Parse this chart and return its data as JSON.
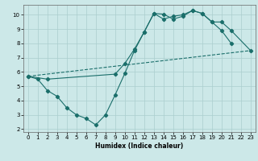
{
  "xlabel": "Humidex (Indice chaleur)",
  "xlim": [
    -0.5,
    23.5
  ],
  "ylim": [
    1.8,
    10.7
  ],
  "yticks": [
    2,
    3,
    4,
    5,
    6,
    7,
    8,
    9,
    10
  ],
  "xticks": [
    0,
    1,
    2,
    3,
    4,
    5,
    6,
    7,
    8,
    9,
    10,
    11,
    12,
    13,
    14,
    15,
    16,
    17,
    18,
    19,
    20,
    21,
    22,
    23
  ],
  "bg_color": "#cce8e8",
  "line_color": "#1a6e6a",
  "grid_color": "#aacece",
  "curve1_x": [
    0,
    1,
    2,
    3,
    4,
    5,
    6,
    7,
    8,
    9,
    10,
    11,
    12,
    13,
    14,
    15,
    16,
    17,
    18,
    19,
    20,
    21
  ],
  "curve1_y": [
    5.7,
    5.5,
    4.7,
    4.3,
    3.5,
    3.0,
    2.75,
    2.3,
    3.0,
    4.4,
    5.9,
    7.5,
    8.8,
    10.1,
    9.7,
    9.9,
    10.0,
    10.3,
    10.1,
    9.5,
    8.9,
    8.0
  ],
  "curve2_x": [
    0,
    2,
    9,
    10,
    11,
    12,
    13,
    14,
    15,
    16,
    17,
    18,
    19,
    20,
    21,
    23
  ],
  "curve2_y": [
    5.7,
    5.5,
    5.85,
    6.6,
    7.6,
    8.8,
    10.1,
    10.05,
    9.7,
    9.9,
    10.3,
    10.1,
    9.5,
    9.5,
    8.9,
    7.5
  ],
  "curve3_x": [
    0,
    23
  ],
  "curve3_y": [
    5.7,
    7.5
  ]
}
